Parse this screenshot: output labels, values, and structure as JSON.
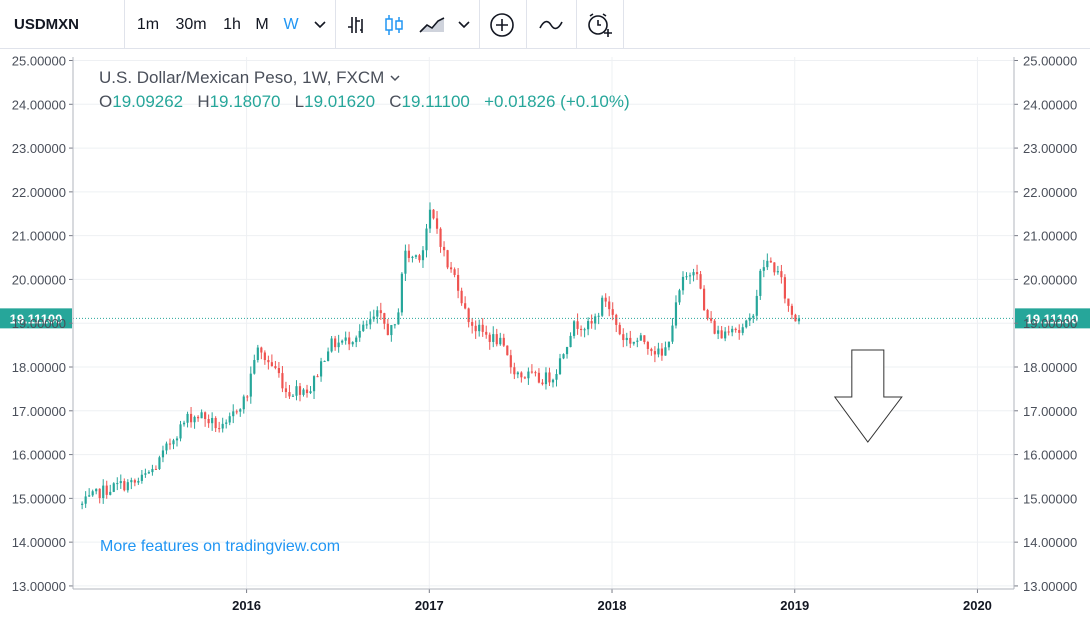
{
  "toolbar": {
    "symbol": "USDMXN",
    "intervals": [
      "1m",
      "30m",
      "1h",
      "M",
      "W"
    ],
    "active_interval": "W",
    "icons": [
      "chevron-down-icon",
      "bar-style-icon",
      "candle-style-icon",
      "area-style-icon",
      "chevron-down-icon",
      "compare-plus-icon",
      "indicators-icon",
      "alert-clock-icon"
    ]
  },
  "legend": {
    "title": "U.S. Dollar/Mexican Peso, 1W, FXCM",
    "o_label": "O",
    "o_value": "19.09262",
    "h_label": "H",
    "h_value": "19.18070",
    "l_label": "L",
    "l_value": "19.01620",
    "c_label": "C",
    "c_value": "19.11100",
    "change": "+0.01826 (+0.10%)"
  },
  "price_label": "19.11100",
  "watermark": "More features on tradingview.com",
  "colors": {
    "up": "#26a69a",
    "down": "#ef5350",
    "accent": "#2196f3",
    "price_line": "#26a69a"
  },
  "annotation": {
    "type": "down-arrow",
    "meaning": "bearish"
  },
  "chart_data": {
    "type": "candlestick",
    "title": "U.S. Dollar/Mexican Peso, 1W, FXCM",
    "x_ticks": [
      "2016",
      "2017",
      "2018",
      "2019",
      "2020"
    ],
    "y_ticks": [
      "13.00000",
      "14.00000",
      "15.00000",
      "16.00000",
      "17.00000",
      "18.00000",
      "19.00000",
      "20.00000",
      "21.00000",
      "22.00000",
      "23.00000",
      "24.00000",
      "25.00000"
    ],
    "xlim": [
      2015.05,
      2020.2
    ],
    "ylim": [
      12.93,
      25.08
    ],
    "last_close": 19.111,
    "close_path": [
      [
        2015.1,
        14.85
      ],
      [
        2015.2,
        15.15
      ],
      [
        2015.3,
        15.3
      ],
      [
        2015.4,
        15.35
      ],
      [
        2015.5,
        15.7
      ],
      [
        2015.6,
        16.4
      ],
      [
        2015.68,
        16.85
      ],
      [
        2015.75,
        16.9
      ],
      [
        2015.82,
        16.7
      ],
      [
        2015.88,
        16.55
      ],
      [
        2015.95,
        17.1
      ],
      [
        2016.0,
        17.3
      ],
      [
        2016.05,
        18.4
      ],
      [
        2016.1,
        18.2
      ],
      [
        2016.17,
        17.9
      ],
      [
        2016.22,
        17.4
      ],
      [
        2016.28,
        17.5
      ],
      [
        2016.35,
        17.5
      ],
      [
        2016.4,
        18.0
      ],
      [
        2016.45,
        18.5
      ],
      [
        2016.55,
        18.6
      ],
      [
        2016.65,
        18.9
      ],
      [
        2016.72,
        19.2
      ],
      [
        2016.78,
        18.8
      ],
      [
        2016.82,
        18.9
      ],
      [
        2016.86,
        20.6
      ],
      [
        2016.9,
        20.5
      ],
      [
        2016.96,
        20.6
      ],
      [
        2017.0,
        21.5
      ],
      [
        2017.04,
        21.2
      ],
      [
        2017.1,
        20.3
      ],
      [
        2017.15,
        20.0
      ],
      [
        2017.2,
        19.2
      ],
      [
        2017.25,
        18.9
      ],
      [
        2017.32,
        18.7
      ],
      [
        2017.38,
        18.6
      ],
      [
        2017.45,
        18.0
      ],
      [
        2017.5,
        17.8
      ],
      [
        2017.55,
        17.8
      ],
      [
        2017.6,
        17.7
      ],
      [
        2017.68,
        17.8
      ],
      [
        2017.72,
        18.2
      ],
      [
        2017.78,
        18.9
      ],
      [
        2017.82,
        19.0
      ],
      [
        2017.88,
        18.9
      ],
      [
        2017.92,
        19.2
      ],
      [
        2017.96,
        19.6
      ],
      [
        2018.0,
        19.2
      ],
      [
        2018.05,
        18.7
      ],
      [
        2018.1,
        18.6
      ],
      [
        2018.18,
        18.6
      ],
      [
        2018.23,
        18.4
      ],
      [
        2018.28,
        18.2
      ],
      [
        2018.33,
        19.0
      ],
      [
        2018.38,
        19.9
      ],
      [
        2018.42,
        20.1
      ],
      [
        2018.46,
        20.4
      ],
      [
        2018.5,
        19.3
      ],
      [
        2018.55,
        18.9
      ],
      [
        2018.6,
        18.7
      ],
      [
        2018.65,
        19.0
      ],
      [
        2018.7,
        18.8
      ],
      [
        2018.75,
        19.0
      ],
      [
        2018.78,
        19.4
      ],
      [
        2018.82,
        20.3
      ],
      [
        2018.86,
        20.4
      ],
      [
        2018.9,
        20.2
      ],
      [
        2018.93,
        19.9
      ],
      [
        2018.96,
        19.4
      ],
      [
        2019.0,
        19.1
      ],
      [
        2019.04,
        19.11
      ]
    ]
  }
}
